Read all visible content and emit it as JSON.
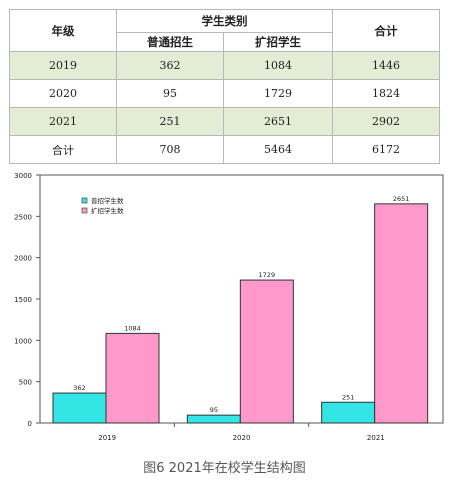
{
  "table": {
    "col_year": "年级",
    "col_category": "学生类别",
    "col_regular": "普通招生",
    "col_expanded": "扩招学生",
    "col_total": "合计",
    "rows": [
      {
        "year": "2019",
        "regular": "362",
        "expanded": "1084",
        "total": "1446"
      },
      {
        "year": "2020",
        "regular": "95",
        "expanded": "1729",
        "total": "1824"
      },
      {
        "year": "2021",
        "regular": "251",
        "expanded": "2651",
        "total": "2902"
      }
    ],
    "sum_row": {
      "label": "合计",
      "regular": "708",
      "expanded": "5464",
      "total": "6172"
    }
  },
  "chart_data": {
    "type": "bar",
    "categories": [
      "2019",
      "2020",
      "2021"
    ],
    "series": [
      {
        "name": "普招学生数",
        "values": [
          362,
          95,
          251
        ],
        "color": "#33e5e5"
      },
      {
        "name": "扩招学生数",
        "values": [
          1084,
          1729,
          2651
        ],
        "color": "#ff99cc"
      }
    ],
    "ylim": [
      0,
      3000
    ],
    "yticks": [
      0,
      500,
      1000,
      1500,
      2000,
      2500,
      3000
    ],
    "legend": "top-left",
    "grid": false
  },
  "caption": "图6    2021年在校学生结构图"
}
